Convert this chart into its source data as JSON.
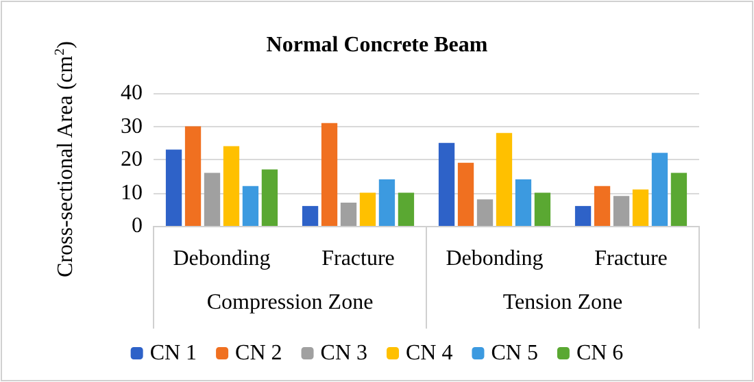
{
  "chart_data": {
    "type": "bar",
    "title": "Normal Concrete Beam",
    "ylabel": "Cross-sectional Area (cm$^{2}$)",
    "categories": [
      "Debonding",
      "Fracture",
      "Debonding",
      "Fracture"
    ],
    "annotations": [
      "Compression Zone",
      "Tension Zone"
    ],
    "series": [
      {
        "name": "CN 1",
        "color": "#2e62c8",
        "values": [
          23,
          6,
          25,
          6
        ]
      },
      {
        "name": "CN 2",
        "color": "#f07020",
        "values": [
          30,
          31,
          19,
          12
        ]
      },
      {
        "name": "CN 3",
        "color": "#a0a0a0",
        "values": [
          16,
          7,
          8,
          9
        ]
      },
      {
        "name": "CN 4",
        "color": "#ffc000",
        "values": [
          24,
          10,
          28,
          11
        ]
      },
      {
        "name": "CN 5",
        "color": "#3c9ae0",
        "values": [
          12,
          14,
          14,
          22
        ]
      },
      {
        "name": "CN 6",
        "color": "#5aa832",
        "values": [
          17,
          10,
          10,
          16
        ]
      }
    ],
    "ylim": [
      0,
      40
    ],
    "yticks": [
      0,
      10,
      20,
      30,
      40
    ],
    "grid": "y",
    "legend": "bottom"
  }
}
